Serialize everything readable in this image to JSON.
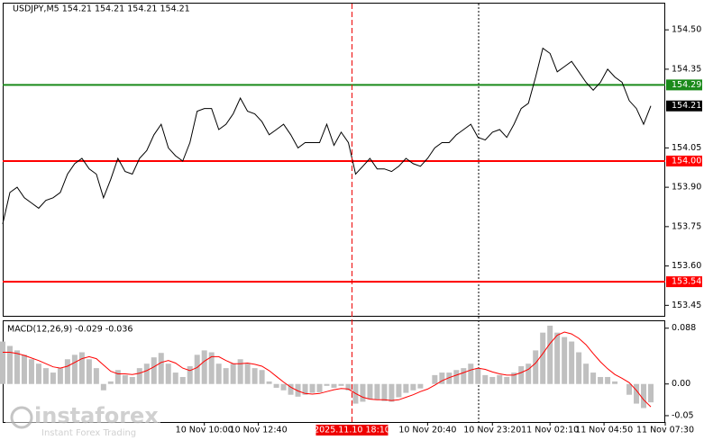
{
  "chart_data": [
    {
      "type": "line",
      "title": "USDJPY,M5  154.21 154.21 154.21 154.21",
      "color": "#000000",
      "values": [
        153.76,
        153.88,
        153.9,
        153.86,
        153.84,
        153.82,
        153.85,
        153.86,
        153.88,
        153.95,
        153.99,
        154.01,
        153.97,
        153.95,
        153.86,
        153.93,
        154.01,
        153.96,
        153.95,
        154.01,
        154.04,
        154.1,
        154.14,
        154.05,
        154.02,
        154.0,
        154.07,
        154.19,
        154.2,
        154.2,
        154.12,
        154.14,
        154.18,
        154.24,
        154.19,
        154.18,
        154.15,
        154.1,
        154.12,
        154.14,
        154.1,
        154.05,
        154.07,
        154.07,
        154.07,
        154.14,
        154.06,
        154.11,
        154.07,
        153.95,
        153.98,
        154.01,
        153.97,
        153.97,
        153.96,
        153.98,
        154.01,
        153.99,
        153.98,
        154.01,
        154.05,
        154.07,
        154.07,
        154.1,
        154.12,
        154.14,
        154.09,
        154.08,
        154.11,
        154.12,
        154.09,
        154.14,
        154.2,
        154.22,
        154.32,
        154.43,
        154.41,
        154.34,
        154.36,
        154.38,
        154.34,
        154.3,
        154.27,
        154.3,
        154.35,
        154.32,
        154.3,
        154.23,
        154.2,
        154.14,
        154.21
      ],
      "xlim": [
        0,
        92
      ],
      "ylim": [
        153.41,
        154.6
      ],
      "yticks": [
        {
          "value": 154.5,
          "label": "154.50"
        },
        154.35,
        154.05,
        {
          "value": 153.9,
          "label": "153.90"
        },
        153.75,
        {
          "value": 153.6,
          "label": "153.60"
        },
        153.45
      ],
      "levels": [
        {
          "value": 154.29,
          "color": "#1a8a1a"
        },
        {
          "value": 154,
          "label": "154.00",
          "color": "#ff0000"
        },
        {
          "value": 153.54,
          "color": "#ff0000"
        }
      ],
      "current": 154.21,
      "xticks": [
        {
          "value": 28,
          "label": "10 Nov 10:00"
        },
        {
          "value": 35.5,
          "label": "10 Nov 12:40"
        },
        {
          "value": 59,
          "label": "10 Nov 20:40"
        },
        {
          "value": 68,
          "label": "10 Nov 23:20"
        },
        {
          "value": 76,
          "label": "11 Nov 02:10"
        },
        {
          "value": 83.5,
          "label": "11 Nov 04:50"
        },
        {
          "value": 92,
          "label": "11 Nov 07:30"
        }
      ],
      "cursor": {
        "value": 48.5,
        "label": "2025.11.10 18:10"
      }
    },
    {
      "type": "macd",
      "title": "MACD(12,26,9) -0.029 -0.036",
      "color": "#c0c0c0",
      "signal_color": "#ff0000",
      "values": [
        0.067,
        0.06,
        0.053,
        0.046,
        0.039,
        0.032,
        0.025,
        0.018,
        0.025,
        0.039,
        0.046,
        0.05,
        0.039,
        0.025,
        -0.01,
        0.004,
        0.022,
        0.014,
        0.011,
        0.025,
        0.032,
        0.042,
        0.049,
        0.032,
        0.018,
        0.011,
        0.028,
        0.046,
        0.053,
        0.05,
        0.032,
        0.025,
        0.032,
        0.039,
        0.032,
        0.025,
        0.022,
        0.004,
        -0.006,
        -0.01,
        -0.017,
        -0.02,
        -0.017,
        -0.014,
        -0.013,
        -0.003,
        -0.006,
        -0.003,
        -0.01,
        -0.031,
        -0.028,
        -0.024,
        -0.024,
        -0.027,
        -0.028,
        -0.021,
        -0.014,
        -0.01,
        -0.007,
        0.0,
        0.014,
        0.018,
        0.018,
        0.022,
        0.025,
        0.032,
        0.025,
        0.014,
        0.011,
        0.014,
        0.011,
        0.018,
        0.028,
        0.032,
        0.053,
        0.081,
        0.092,
        0.081,
        0.074,
        0.067,
        0.05,
        0.032,
        0.018,
        0.011,
        0.011,
        0.004,
        0.0,
        -0.017,
        -0.031,
        -0.038,
        -0.029
      ],
      "signal": [
        0.05,
        0.05,
        0.048,
        0.045,
        0.041,
        0.037,
        0.032,
        0.027,
        0.025,
        0.028,
        0.034,
        0.04,
        0.043,
        0.04,
        0.03,
        0.02,
        0.016,
        0.016,
        0.015,
        0.017,
        0.021,
        0.027,
        0.034,
        0.037,
        0.033,
        0.025,
        0.021,
        0.026,
        0.036,
        0.043,
        0.043,
        0.037,
        0.032,
        0.032,
        0.033,
        0.031,
        0.028,
        0.021,
        0.012,
        0.003,
        -0.005,
        -0.011,
        -0.015,
        -0.016,
        -0.015,
        -0.012,
        -0.009,
        -0.007,
        -0.008,
        -0.015,
        -0.021,
        -0.024,
        -0.025,
        -0.025,
        -0.026,
        -0.025,
        -0.021,
        -0.017,
        -0.012,
        -0.008,
        -0.002,
        0.005,
        0.01,
        0.014,
        0.018,
        0.022,
        0.025,
        0.023,
        0.019,
        0.016,
        0.014,
        0.014,
        0.018,
        0.023,
        0.033,
        0.048,
        0.064,
        0.077,
        0.082,
        0.079,
        0.072,
        0.062,
        0.048,
        0.035,
        0.024,
        0.015,
        0.009,
        0.002,
        -0.01,
        -0.025,
        -0.036
      ],
      "ylim": [
        -0.06,
        0.099
      ],
      "yticks": [
        0.088,
        {
          "value": 0,
          "label": "0.00"
        },
        -0.05
      ]
    }
  ],
  "watermark": {
    "brand": "instaforex",
    "tagline": "Instant Forex Trading"
  }
}
